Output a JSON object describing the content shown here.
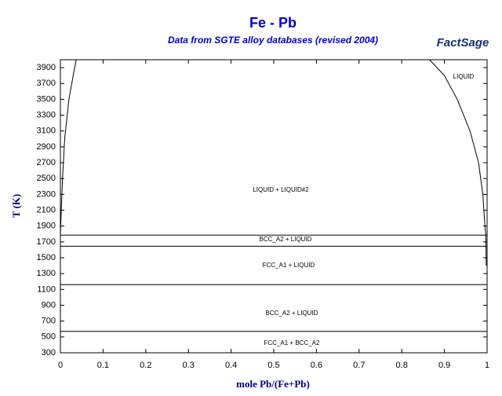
{
  "chart_data": {
    "type": "line",
    "title": "Fe - Pb",
    "subtitle": "Data from SGTE alloy databases (revised 2004)",
    "logo": "FactSage",
    "x_label": "mole Pb/(Fe+Pb)",
    "y_label": "T (K)",
    "xlim": [
      0,
      1
    ],
    "ylim": [
      300,
      4000
    ],
    "xticks": [
      0,
      0.1,
      0.2,
      0.3,
      0.4,
      0.5,
      0.6,
      0.7,
      0.8,
      0.9,
      1
    ],
    "yticks": [
      300,
      500,
      700,
      900,
      1100,
      1300,
      1500,
      1700,
      1900,
      2100,
      2300,
      2500,
      2700,
      2900,
      3100,
      3300,
      3500,
      3700,
      3900
    ],
    "series": [
      {
        "color": "#000000",
        "x": [
          0,
          0.002,
          0.005,
          0.01,
          0.02,
          0.03,
          0.037
        ],
        "y": [
          1785,
          2100,
          2500,
          3000,
          3500,
          3800,
          4000
        ]
      },
      {
        "color": "#000000",
        "x": [
          0.865,
          0.9,
          0.93,
          0.96,
          0.98,
          0.99,
          0.995,
          0.997,
          0.998
        ],
        "y": [
          4000,
          3800,
          3500,
          3100,
          2700,
          2300,
          1900,
          1785,
          1400
        ]
      },
      {
        "color": "#000000",
        "x": [
          0,
          1
        ],
        "y": [
          1785,
          1785
        ]
      },
      {
        "color": "#000000",
        "x": [
          0,
          1
        ],
        "y": [
          1645,
          1645
        ]
      },
      {
        "color": "#000000",
        "x": [
          0,
          1
        ],
        "y": [
          1160,
          1160
        ]
      },
      {
        "color": "#000000",
        "x": [
          0,
          1
        ],
        "y": [
          570,
          570
        ]
      }
    ],
    "annotations": [
      "LIQUID",
      "LIQUID + LIQUID#2",
      "BCC_A2 + LIQUID",
      "FCC_A1 + LIQUID",
      "BCC_A2 + LIQUID",
      "FCC_A1 + BCC_A2"
    ]
  }
}
